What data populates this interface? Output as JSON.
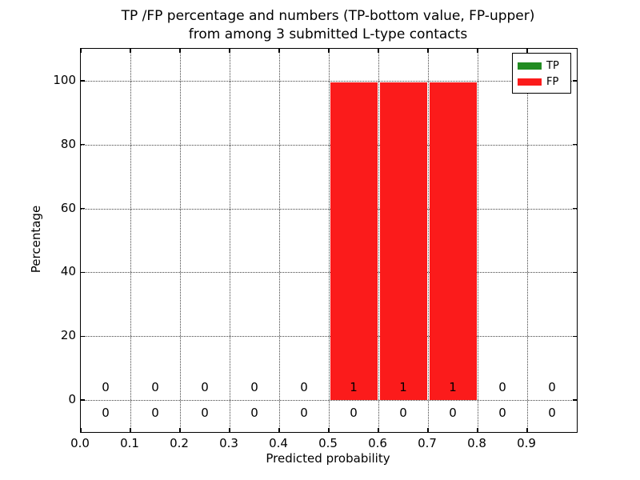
{
  "chart_data": {
    "type": "bar",
    "stacked": true,
    "title_line1": "TP /FP percentage and numbers (TP-bottom value, FP-upper)",
    "title_line2": "from among 3 submitted L-type contacts",
    "xlabel": "Predicted probability",
    "ylabel": "Percentage",
    "xlim": [
      0.0,
      1.0
    ],
    "ylim": [
      -10,
      110
    ],
    "x_ticks": [
      0.0,
      0.1,
      0.2,
      0.3,
      0.4,
      0.5,
      0.6,
      0.7,
      0.8,
      0.9
    ],
    "y_ticks": [
      0,
      20,
      40,
      60,
      80,
      100
    ],
    "grid": "dotted",
    "legend_position": "upper right",
    "bin_edges": [
      0.0,
      0.1,
      0.2,
      0.3,
      0.4,
      0.5,
      0.6,
      0.7,
      0.8,
      0.9,
      1.0
    ],
    "series": [
      {
        "name": "TP",
        "color": "#228c22",
        "counts": [
          0,
          0,
          0,
          0,
          0,
          0,
          0,
          0,
          0,
          0
        ],
        "pct": [
          0,
          0,
          0,
          0,
          0,
          0,
          0,
          0,
          0,
          0
        ]
      },
      {
        "name": "FP",
        "color": "#fb1b1b",
        "counts": [
          0,
          0,
          0,
          0,
          0,
          1,
          1,
          1,
          0,
          0
        ],
        "pct": [
          0,
          0,
          0,
          0,
          0,
          99.5,
          99.5,
          99.5,
          0,
          0
        ]
      }
    ],
    "annotation_rows": {
      "upper_series": "FP",
      "lower_series": "TP"
    }
  }
}
